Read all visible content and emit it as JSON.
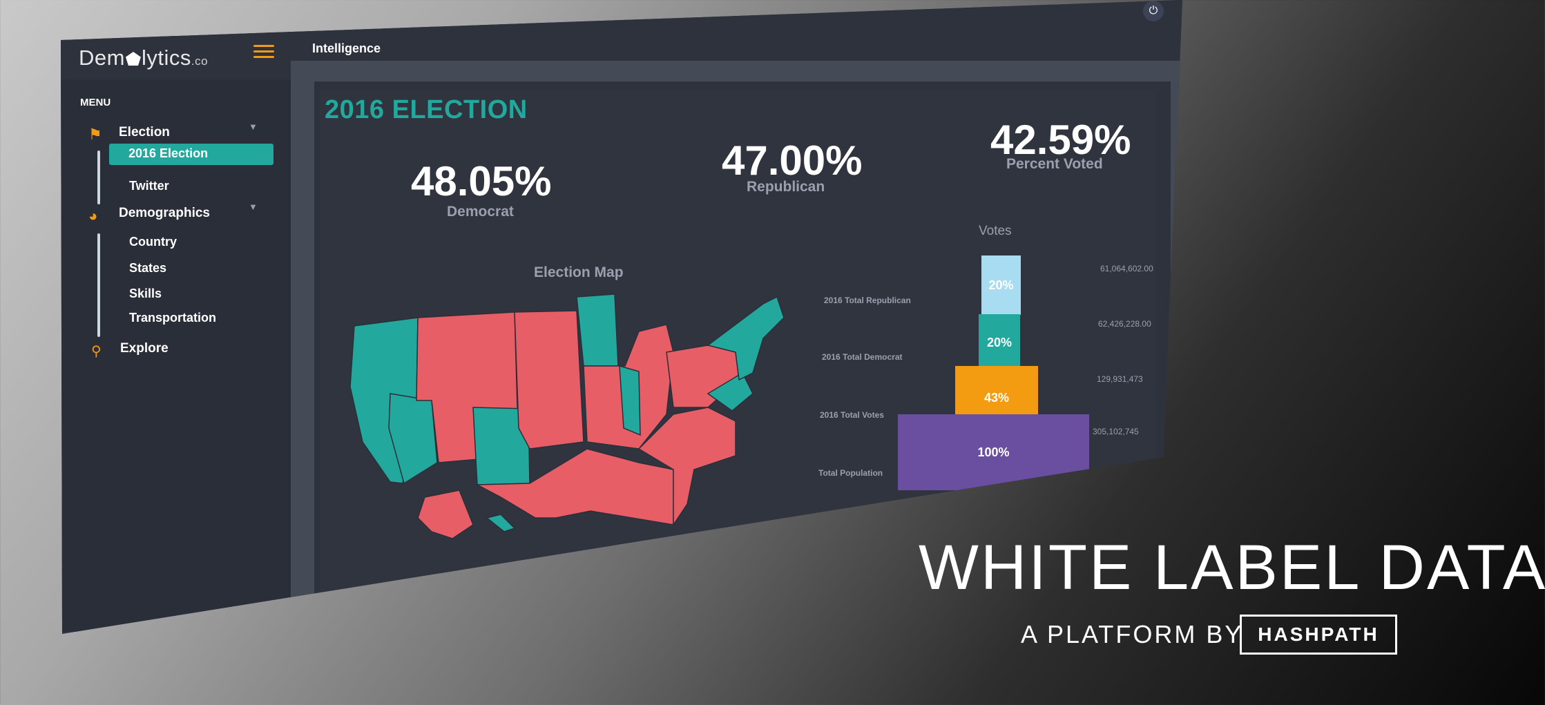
{
  "app": {
    "logo_text_a": "Dem",
    "logo_text_b": "lytics",
    "logo_tld": ".co",
    "breadcrumb": "Intelligence"
  },
  "sidebar": {
    "menu_title": "MENU",
    "groups": [
      {
        "label": "Election",
        "icon": "flag-icon",
        "items": [
          "2016 Election",
          "Twitter"
        ],
        "active": "2016 Election"
      },
      {
        "label": "Demographics",
        "icon": "pie-chart-icon",
        "items": [
          "Country",
          "States",
          "Skills",
          "Transportation"
        ]
      },
      {
        "label": "Explore",
        "icon": "search-icon",
        "items": []
      }
    ]
  },
  "dashboard": {
    "title": "2016 ELECTION",
    "stats": [
      {
        "value": "48.05%",
        "label": "Democrat"
      },
      {
        "value": "47.00%",
        "label": "Republican"
      },
      {
        "value": "42.59%",
        "label": "Percent Voted"
      }
    ],
    "map_title": "Election Map",
    "map_colors": {
      "democrat": "#23a89d",
      "republican": "#e85e66"
    },
    "votes_title": "Votes"
  },
  "chart_data": {
    "type": "bar",
    "title": "Votes",
    "categories": [
      "2016 Total Republican",
      "2016 Total Democrat",
      "2016 Total Votes",
      "Total Population"
    ],
    "values": [
      61064602.0,
      62426228.0,
      129931473,
      305102745
    ],
    "value_labels": [
      "61,064,602.00",
      "62,426,228.00",
      "129,931,473",
      "305,102,745"
    ],
    "percent_labels": [
      "20%",
      "20%",
      "43%",
      "100%"
    ],
    "percents": [
      20,
      20,
      43,
      100
    ],
    "colors": [
      "#a8dcf0",
      "#23a89d",
      "#f39c12",
      "#6a4fa0"
    ]
  },
  "overlay": {
    "headline": "WHITE LABEL DATA",
    "platform_by": "A PLATFORM BY",
    "brand": "HASHPATH"
  }
}
